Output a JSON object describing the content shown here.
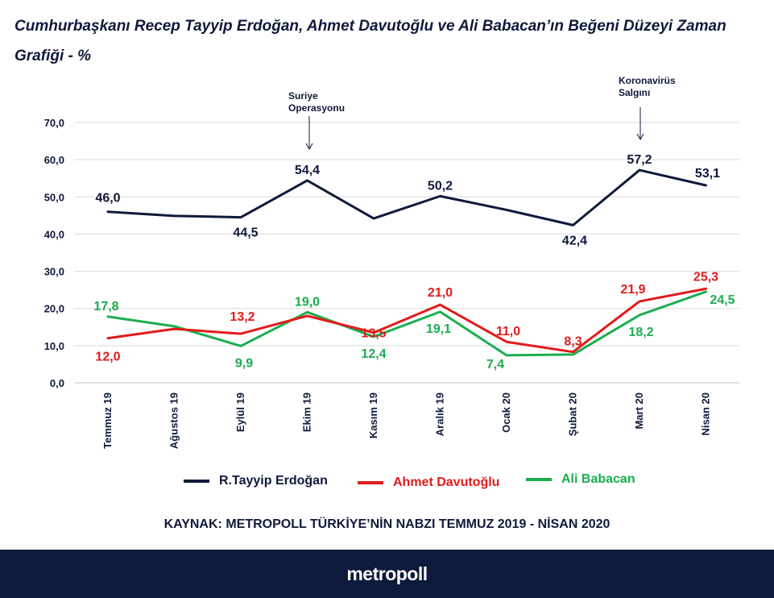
{
  "title": "Cumhurbaşkanı Recep Tayyip Erdoğan, Ahmet Davutoğlu ve Ali Babacan’ın Beğeni Düzeyi Zaman Grafiği - %",
  "source": "KAYNAK: METROPOLL TÜRKİYE’NİN NABZI TEMMUZ 2019 - NİSAN 2020",
  "logo": "metropoll",
  "colors": {
    "erdogan": "#0e1a3b",
    "davutoglu": "#e21b1b",
    "babacan": "#1aae4f",
    "background_footer": "#0e1a3b"
  },
  "chart_data": {
    "type": "line",
    "categories": [
      "Temmuz 19",
      "Ağustos 19",
      "Eylül 19",
      "Ekim 19",
      "Kasım 19",
      "Aralık 19",
      "Ocak 20",
      "Şubat 20",
      "Mart 20",
      "Nisan 20"
    ],
    "y_tick_labels": [
      "0,0",
      "10,0",
      "20,0",
      "30,0",
      "40,0",
      "50,0",
      "60,0",
      "70,0"
    ],
    "ylim": [
      0,
      70
    ],
    "grid": true,
    "legend_position": "bottom",
    "series": [
      {
        "key": "erdogan",
        "name": "R.Tayyip Erdoğan",
        "values": [
          46.0,
          44.9,
          44.5,
          54.4,
          44.2,
          50.2,
          46.5,
          42.4,
          57.2,
          53.1
        ],
        "labels": [
          "46,0",
          "",
          "44,5",
          "54,4",
          "",
          "50,2",
          "",
          "42,4",
          "57,2",
          "53,1"
        ]
      },
      {
        "key": "davutoglu",
        "name": "Ahmet Davutoğlu",
        "values": [
          12.0,
          14.5,
          13.2,
          18.0,
          13.5,
          21.0,
          11.0,
          8.3,
          21.9,
          25.3
        ],
        "labels": [
          "12,0",
          "",
          "13,2",
          "",
          "13,5",
          "21,0",
          "11,0",
          "8,3",
          "21,9",
          "25,3"
        ]
      },
      {
        "key": "babacan",
        "name": "Ali Babacan",
        "values": [
          17.8,
          15.2,
          9.9,
          19.0,
          12.4,
          19.1,
          7.4,
          7.6,
          18.2,
          24.5
        ],
        "labels": [
          "17,8",
          "",
          "9,9",
          "19,0",
          "12,4",
          "19,1",
          "7,4",
          "",
          "18,2",
          "24,5"
        ]
      }
    ],
    "annotations": [
      {
        "category_index": 3,
        "text_lines": [
          "Suriye",
          "Operasyonu"
        ]
      },
      {
        "category_index": 8,
        "text_lines": [
          "Koronavirüs",
          "Salgını"
        ]
      }
    ]
  }
}
